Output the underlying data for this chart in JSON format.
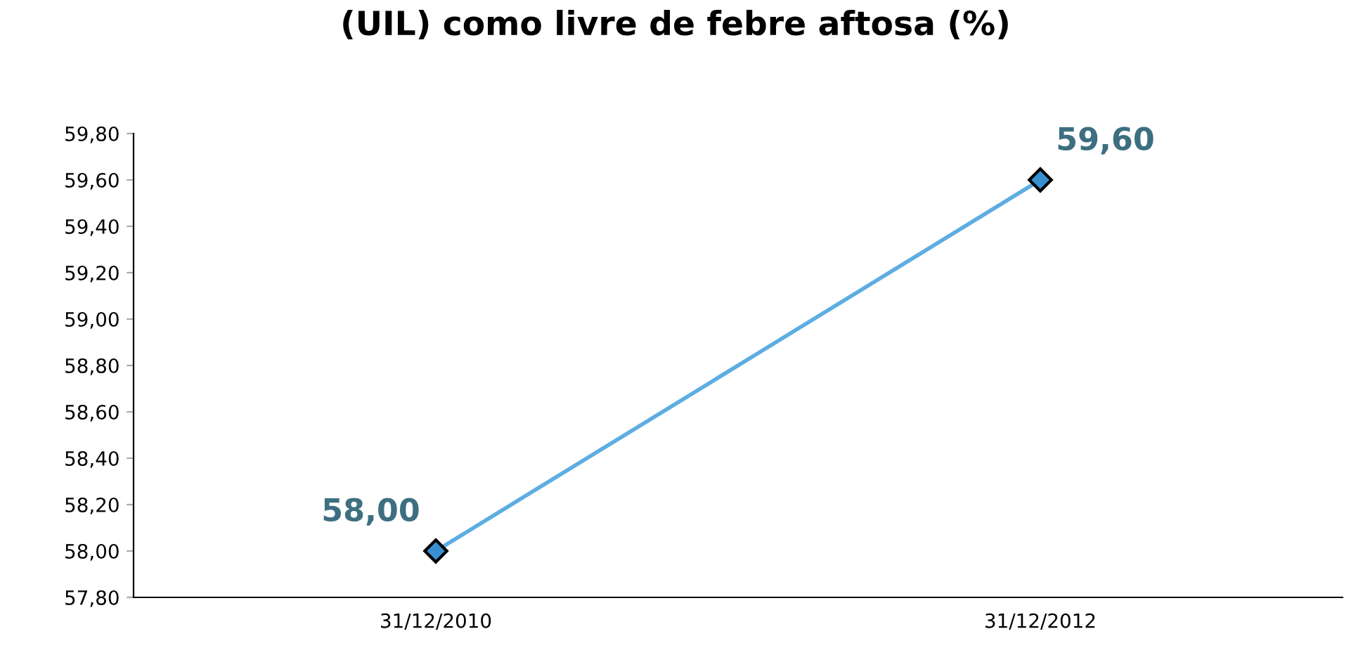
{
  "chart_data": {
    "type": "line",
    "title": "(UIL) como livre de febre aftosa (%)",
    "categories": [
      "31/12/2010",
      "31/12/2012"
    ],
    "series": [
      {
        "color": "#5dade2",
        "values": [
          58.0,
          59.6
        ],
        "value_labels": [
          "58,00",
          "59,60"
        ]
      }
    ],
    "ylim": [
      57.8,
      59.8
    ],
    "yticks": [
      {
        "value": 57.8,
        "label": "57,80"
      },
      {
        "value": 58.0,
        "label": "58,00"
      },
      {
        "value": 58.2,
        "label": "58,20"
      },
      {
        "value": 58.4,
        "label": "58,40"
      },
      {
        "value": 58.6,
        "label": "58,60"
      },
      {
        "value": 58.8,
        "label": "58,80"
      },
      {
        "value": 59.0,
        "label": "59,00"
      },
      {
        "value": 59.2,
        "label": "59,20"
      },
      {
        "value": 59.4,
        "label": "59,40"
      },
      {
        "value": 59.6,
        "label": "59,60"
      },
      {
        "value": 59.8,
        "label": "59,80"
      }
    ],
    "marker": "diamond",
    "grid": false,
    "legend": false
  }
}
